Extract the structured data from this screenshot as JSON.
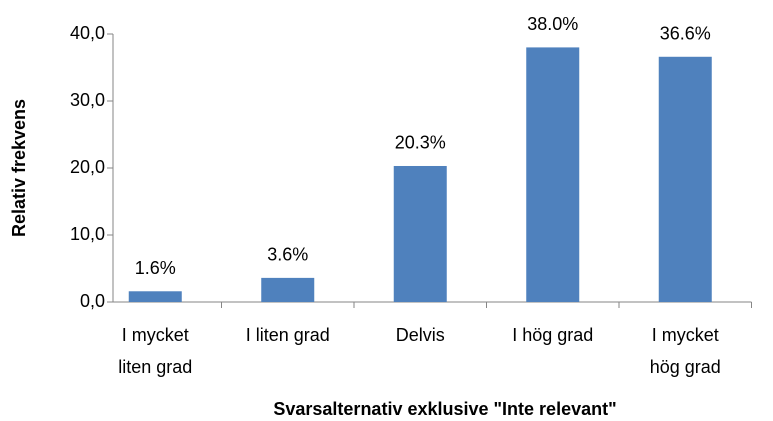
{
  "chart_data": {
    "type": "bar",
    "categories": [
      "I mycket liten grad",
      "I liten grad",
      "Delvis",
      "I hög grad",
      "I mycket hög grad"
    ],
    "values": [
      1.6,
      3.6,
      20.3,
      38.0,
      36.6
    ],
    "value_labels": [
      "1.6%",
      "3.6%",
      "20.3%",
      "38.0%",
      "36.6%"
    ],
    "color": "#4f81bd",
    "ylabel": "Relativ frekvens",
    "xlabel": "Svarsalternativ exklusive \"Inte relevant\"",
    "ylim": [
      0,
      40
    ],
    "yticks": [
      {
        "value": 0,
        "label": "0,0"
      },
      {
        "value": 10,
        "label": "10,0"
      },
      {
        "value": 20,
        "label": "20,0"
      },
      {
        "value": 30,
        "label": "30,0"
      },
      {
        "value": 40,
        "label": "40,0"
      }
    ]
  }
}
